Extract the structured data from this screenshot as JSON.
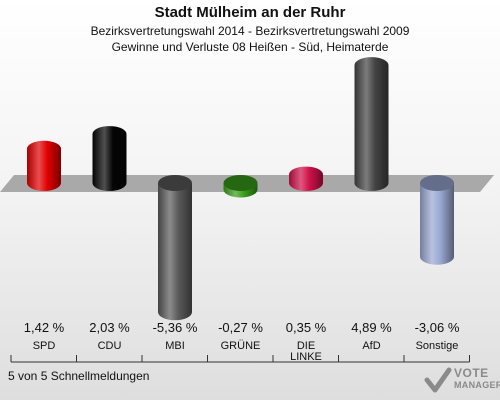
{
  "header": {
    "title": "Stadt Mülheim an der Ruhr",
    "subtitle_1": "Bezirksvertretungswahl 2014 - Bezirksvertretungswahl 2009",
    "subtitle_2": "Gewinne und Verluste 08 Heißen - Süd, Heimaterde"
  },
  "footer": {
    "report_count": "5 von 5 Schnellmeldungen"
  },
  "logo": {
    "text_line_1": "VOTE",
    "text_line_2": "MANAGER"
  },
  "chart_data": {
    "type": "bar",
    "categories": [
      "SPD",
      "CDU",
      "MBI",
      "GRÜNE",
      "DIE LINKE",
      "AfD",
      "Sonstige"
    ],
    "category_lines": [
      [
        "SPD"
      ],
      [
        "CDU"
      ],
      [
        "MBI"
      ],
      [
        "GRÜNE"
      ],
      [
        "DIE",
        "LINKE"
      ],
      [
        "AfD"
      ],
      [
        "Sonstige"
      ]
    ],
    "values": [
      1.42,
      2.03,
      -5.36,
      -0.27,
      0.35,
      4.89,
      -3.06
    ],
    "value_labels": [
      "1,42 %",
      "2,03 %",
      "-5,36 %",
      "-0,27 %",
      "0,35 %",
      "4,89 %",
      "-3,06 %"
    ],
    "colors": [
      "#e00000",
      "#050505",
      "#5a5a5a",
      "#3a9e1a",
      "#d0114a",
      "#444444",
      "#9aa8d2"
    ],
    "ylim": [
      -5.36,
      4.89
    ]
  }
}
